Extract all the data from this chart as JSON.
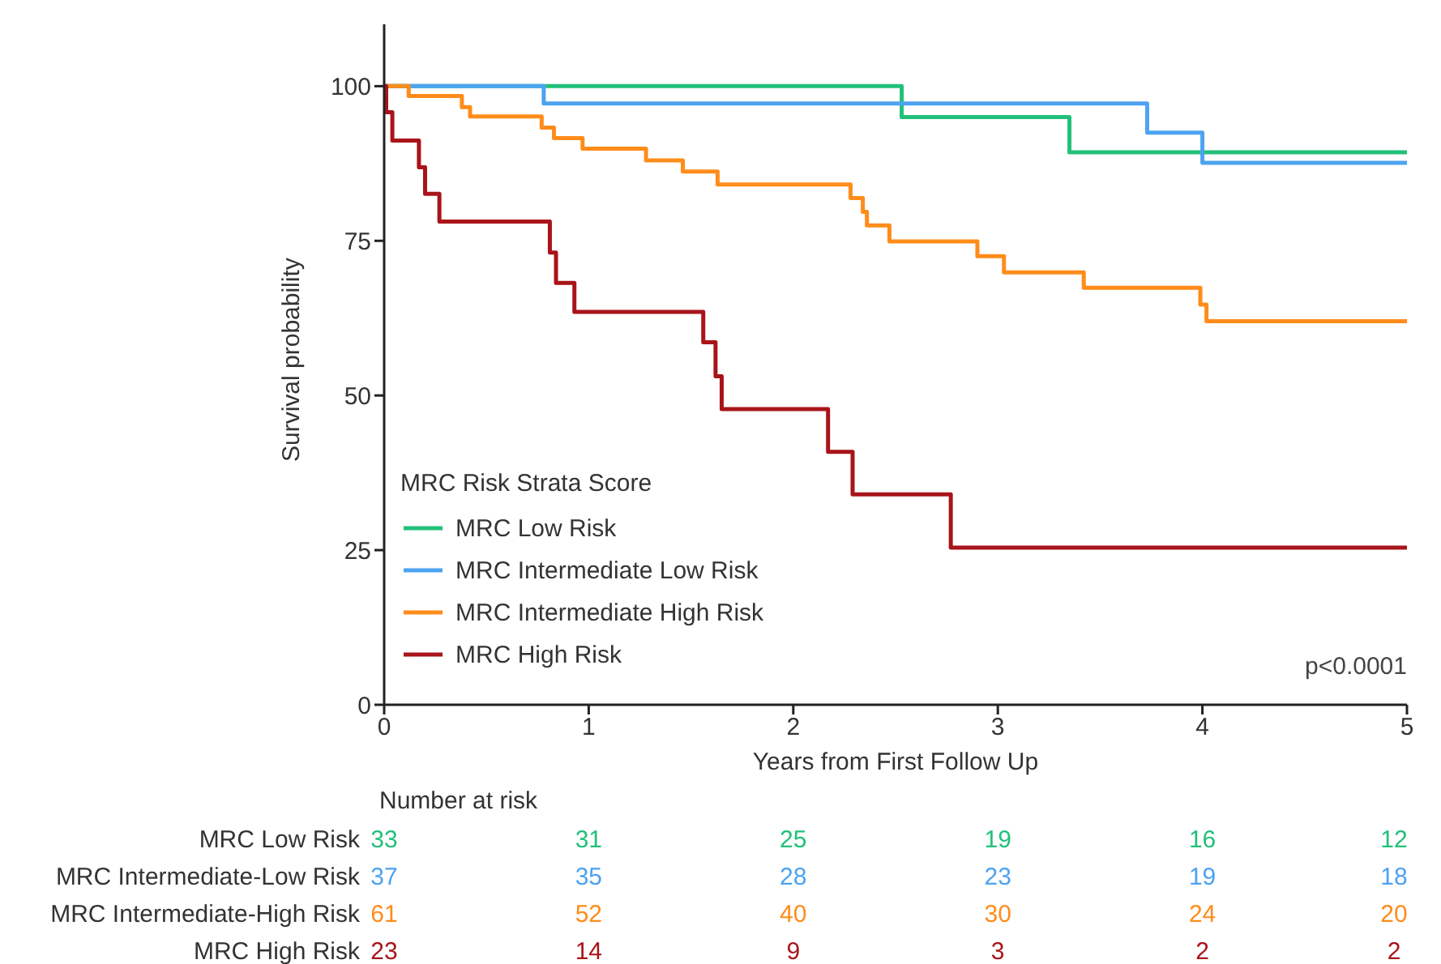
{
  "chart_data": {
    "type": "step",
    "ylabel": "Survival probability",
    "xlabel": "Years from First Follow Up",
    "legend_title": "MRC Risk Strata Score",
    "legend": "bottom left",
    "marker": "none",
    "grid": false,
    "xlim": [
      0,
      5
    ],
    "xticks": [
      0,
      1,
      2,
      3,
      4,
      5
    ],
    "ylim": [
      0,
      110
    ],
    "yticks": [
      0,
      25,
      50,
      75,
      100
    ],
    "series": [
      {
        "name": "MRC Low Risk",
        "color": "#22c07a",
        "x": [
          0,
          2.53,
          3.35,
          5
        ],
        "values": [
          100,
          95.0,
          89.3,
          89.3
        ]
      },
      {
        "name": "MRC Intermediate Low Risk",
        "color": "#4da3f0",
        "x": [
          0,
          0.78,
          3.73,
          4.0,
          5
        ],
        "values": [
          100,
          97.2,
          92.5,
          87.6,
          87.6
        ]
      },
      {
        "name": "MRC Intermediate High Risk",
        "color": "#ff8c1a",
        "x": [
          0,
          0.12,
          0.38,
          0.42,
          0.77,
          0.83,
          0.97,
          1.28,
          1.46,
          1.63,
          2.28,
          2.34,
          2.36,
          2.47,
          2.9,
          3.03,
          3.42,
          3.99,
          4.02,
          5
        ],
        "values": [
          100,
          98.4,
          96.6,
          95.1,
          93.3,
          91.6,
          89.9,
          88.0,
          86.2,
          84.1,
          81.9,
          79.7,
          77.5,
          74.9,
          72.5,
          69.9,
          67.4,
          64.7,
          62.0,
          62.0
        ]
      },
      {
        "name": "MRC High Risk",
        "color": "#a8141a",
        "x": [
          0,
          0.01,
          0.04,
          0.17,
          0.2,
          0.27,
          0.81,
          0.84,
          0.93,
          1.56,
          1.62,
          1.65,
          2.17,
          2.29,
          2.77,
          5
        ],
        "values": [
          100,
          95.8,
          91.2,
          86.9,
          82.6,
          78.1,
          73.1,
          68.2,
          63.5,
          58.6,
          53.1,
          47.8,
          40.9,
          34.0,
          25.4,
          25.4
        ]
      }
    ],
    "annotations": [
      "p<0.0001",
      "Number at risk",
      "MRC Low Risk",
      "33",
      "31",
      "25",
      "19",
      "16",
      "12",
      "MRC Intermediate-Low Risk",
      "37",
      "35",
      "28",
      "23",
      "19",
      "18",
      "MRC Intermediate-High Risk",
      "61",
      "52",
      "40",
      "30",
      "24",
      "20",
      "MRC High Risk",
      "23",
      "14",
      "9",
      "3",
      "2",
      "2"
    ]
  }
}
